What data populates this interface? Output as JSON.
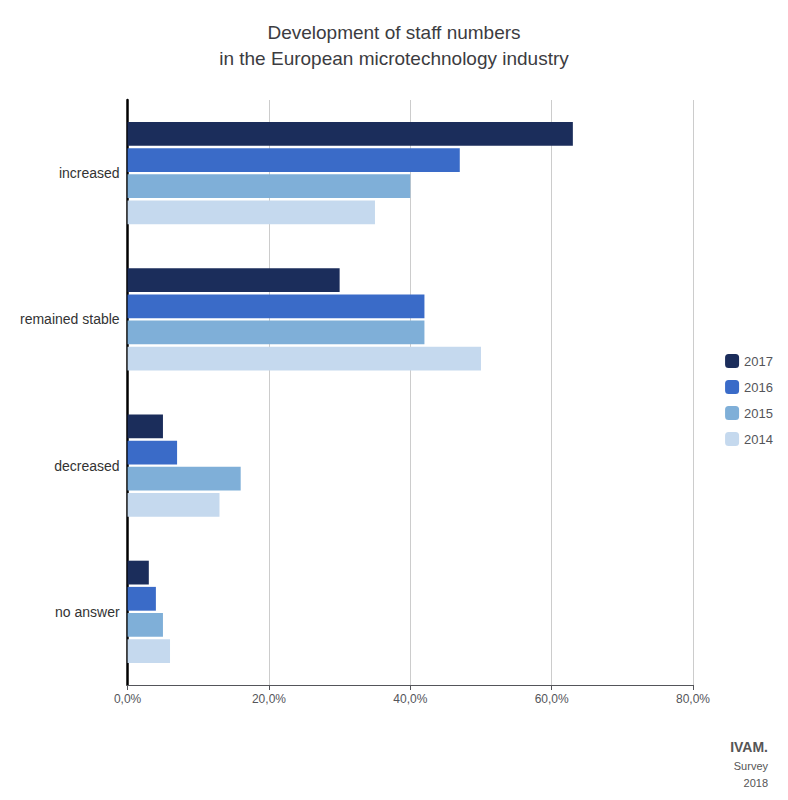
{
  "chart_data": {
    "type": "bar",
    "orientation": "horizontal",
    "title": "Development of staff numbers\nin the European microtechnology industry",
    "categories": [
      "increased",
      "remained stable",
      "decreased",
      "no answer"
    ],
    "series": [
      {
        "name": "2017",
        "color": "#1b2d5b",
        "values": [
          63,
          30,
          5,
          3
        ]
      },
      {
        "name": "2016",
        "color": "#3a6bc8",
        "values": [
          47,
          42,
          7,
          4
        ]
      },
      {
        "name": "2015",
        "color": "#7fafd8",
        "values": [
          40,
          42,
          16,
          5
        ]
      },
      {
        "name": "2014",
        "color": "#c5d9ee",
        "values": [
          35,
          50,
          13,
          6
        ]
      }
    ],
    "xlim": [
      0,
      80
    ],
    "xticks": [
      {
        "value": 0,
        "label": "0,0%"
      },
      {
        "value": 20,
        "label": "20,0%"
      },
      {
        "value": 40,
        "label": "40,0%"
      },
      {
        "value": 60,
        "label": "60,0%"
      },
      {
        "value": 80,
        "label": "80,0%"
      }
    ],
    "grid": true,
    "legend": "right",
    "annotations": [
      "IVAM.",
      "Survey",
      "2018"
    ]
  }
}
